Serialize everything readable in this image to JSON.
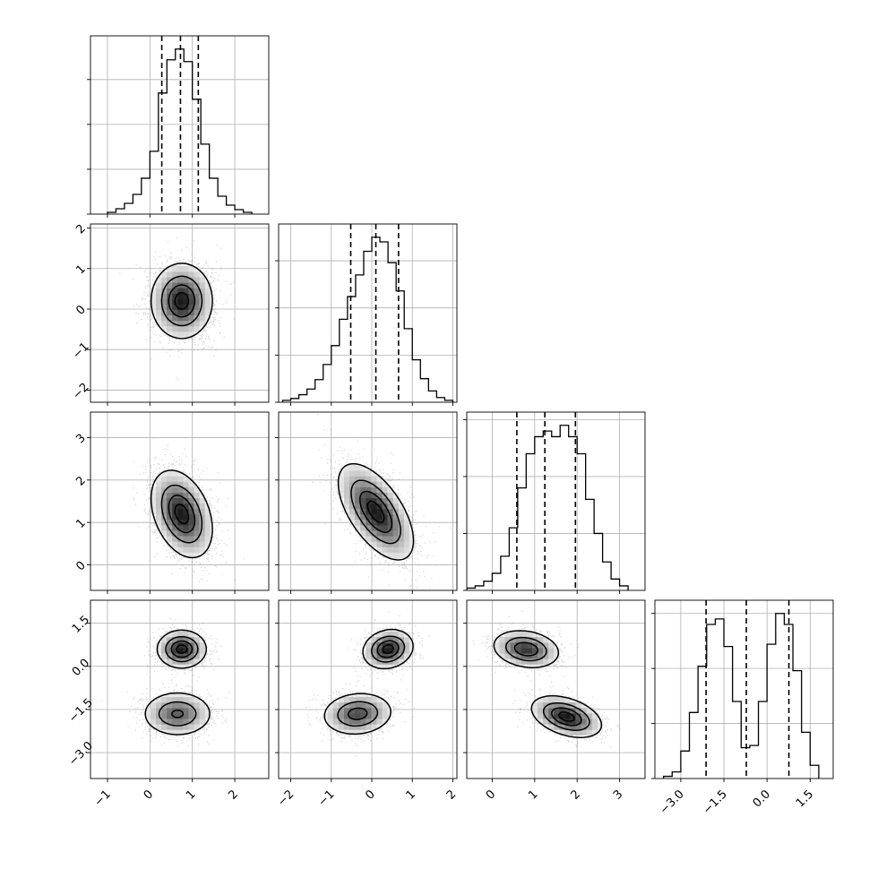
{
  "chart_data": {
    "type": "corner",
    "parameters": 4,
    "grid": true,
    "axes": [
      {
        "range": [
          -1.4,
          2.8
        ],
        "ticks": [
          -1,
          0,
          1,
          2
        ],
        "tick_labels": [
          "−1",
          "0",
          "1",
          "2"
        ]
      },
      {
        "range": [
          -2.3,
          2.1
        ],
        "ticks": [
          -2,
          -1,
          0,
          1,
          2
        ],
        "tick_labels": [
          "−2",
          "−1",
          "0",
          "1",
          "2"
        ]
      },
      {
        "range": [
          -0.6,
          3.6
        ],
        "ticks": [
          0,
          1,
          2,
          3
        ],
        "tick_labels": [
          "0",
          "1",
          "2",
          "3"
        ]
      },
      {
        "range": [
          -3.9,
          2.3
        ],
        "ticks": [
          -3.0,
          -1.5,
          0.0,
          1.5
        ],
        "tick_labels": [
          "−3.0",
          "−1.5",
          "0.0",
          "1.5"
        ]
      }
    ],
    "histograms": [
      {
        "param": 0,
        "bin_edges": [
          -1.0,
          -0.8,
          -0.6,
          -0.4,
          -0.2,
          0.0,
          0.2,
          0.4,
          0.6,
          0.8,
          1.0,
          1.2,
          1.4,
          1.6,
          1.8,
          2.0,
          2.2,
          2.4
        ],
        "counts": [
          2,
          6,
          12,
          22,
          40,
          70,
          135,
          172,
          184,
          170,
          128,
          78,
          40,
          20,
          10,
          5,
          2
        ],
        "quantiles": [
          0.28,
          0.72,
          1.14
        ]
      },
      {
        "param": 1,
        "bin_edges": [
          -2.2,
          -2.0,
          -1.8,
          -1.6,
          -1.4,
          -1.2,
          -1.0,
          -0.8,
          -0.6,
          -0.4,
          -0.2,
          0.0,
          0.2,
          0.4,
          0.6,
          0.8,
          1.0,
          1.2,
          1.4,
          1.6,
          1.8,
          2.0
        ],
        "counts": [
          2,
          4,
          8,
          14,
          24,
          40,
          60,
          88,
          112,
          135,
          160,
          175,
          170,
          148,
          118,
          78,
          45,
          25,
          12,
          5,
          2
        ],
        "quantiles": [
          -0.52,
          0.1,
          0.66
        ]
      },
      {
        "param": 2,
        "bin_edges": [
          -0.6,
          -0.4,
          -0.2,
          0.0,
          0.2,
          0.4,
          0.6,
          0.8,
          1.0,
          1.2,
          1.4,
          1.6,
          1.8,
          2.0,
          2.2,
          2.4,
          2.6,
          2.8,
          3.0,
          3.2
        ],
        "counts": [
          2,
          4,
          8,
          15,
          30,
          55,
          90,
          120,
          135,
          140,
          135,
          145,
          135,
          120,
          80,
          50,
          25,
          10,
          4
        ],
        "quantiles": [
          0.58,
          1.24,
          1.96
        ]
      },
      {
        "param": 3,
        "bin_edges": [
          -3.6,
          -3.3,
          -3.0,
          -2.7,
          -2.4,
          -2.1,
          -1.8,
          -1.5,
          -1.2,
          -0.9,
          -0.6,
          -0.3,
          0.0,
          0.3,
          0.6,
          0.9,
          1.2,
          1.5,
          1.8
        ],
        "counts": [
          2,
          6,
          25,
          60,
          102,
          140,
          145,
          120,
          70,
          28,
          30,
          70,
          122,
          150,
          140,
          98,
          42,
          12
        ],
        "quantiles": [
          -2.12,
          -0.72,
          0.76
        ]
      }
    ],
    "joint": [
      {
        "row": 1,
        "col": 0,
        "modes": [
          {
            "mean": [
              0.75,
              0.2
            ],
            "sigma": [
              0.35,
              0.45
            ],
            "rho": 0.0,
            "weight": 1
          }
        ]
      },
      {
        "row": 2,
        "col": 0,
        "modes": [
          {
            "mean": [
              0.75,
              1.2
            ],
            "sigma": [
              0.35,
              0.5
            ],
            "rho": -0.35,
            "weight": 1
          }
        ]
      },
      {
        "row": 2,
        "col": 1,
        "modes": [
          {
            "mean": [
              0.1,
              1.25
            ],
            "sigma": [
              0.45,
              0.55
            ],
            "rho": -0.6,
            "weight": 1
          }
        ]
      },
      {
        "row": 3,
        "col": 0,
        "modes": [
          {
            "mean": [
              0.75,
              0.6
            ],
            "sigma": [
              0.28,
              0.32
            ],
            "rho": 0.0,
            "weight": 0.45
          },
          {
            "mean": [
              0.65,
              -1.65
            ],
            "sigma": [
              0.4,
              0.38
            ],
            "rho": 0.0,
            "weight": 0.55
          }
        ]
      },
      {
        "row": 3,
        "col": 1,
        "modes": [
          {
            "mean": [
              0.4,
              0.6
            ],
            "sigma": [
              0.3,
              0.33
            ],
            "rho": 0.15,
            "weight": 0.45
          },
          {
            "mean": [
              -0.35,
              -1.65
            ],
            "sigma": [
              0.42,
              0.36
            ],
            "rho": 0.1,
            "weight": 0.55
          }
        ]
      },
      {
        "row": 3,
        "col": 2,
        "modes": [
          {
            "mean": [
              0.8,
              0.6
            ],
            "sigma": [
              0.38,
              0.32
            ],
            "rho": -0.2,
            "weight": 0.45
          },
          {
            "mean": [
              1.75,
              -1.75
            ],
            "sigma": [
              0.4,
              0.35
            ],
            "rho": -0.4,
            "weight": 0.55
          }
        ]
      }
    ],
    "contour_levels": [
      0.12,
      0.4,
      0.68,
      0.9
    ],
    "colors": {
      "line": "#000000",
      "quantile": "#000000",
      "grid": "#b0b0b0",
      "points": "#9a9a9a"
    }
  }
}
